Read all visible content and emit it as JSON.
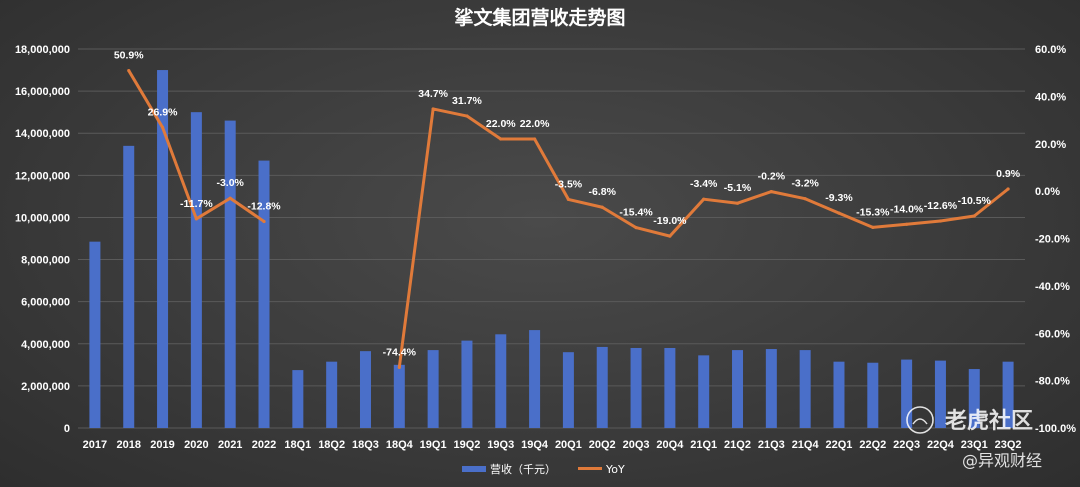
{
  "watermark": {
    "main": "老虎社区",
    "sub": "@异观财经"
  },
  "colors": {
    "bar": "#4a6fc9",
    "line": "#e07a3a",
    "grid": "#5a5a5a"
  },
  "chart_data": {
    "type": "bar+line",
    "title": "挲文集团营收走势图",
    "categories": [
      "2017",
      "2018",
      "2019",
      "2020",
      "2021",
      "2022",
      "18Q1",
      "18Q2",
      "18Q3",
      "18Q4",
      "19Q1",
      "19Q2",
      "19Q3",
      "19Q4",
      "20Q1",
      "20Q2",
      "20Q3",
      "20Q4",
      "21Q1",
      "21Q2",
      "21Q3",
      "21Q4",
      "22Q1",
      "22Q2",
      "22Q3",
      "22Q4",
      "23Q1",
      "23Q2"
    ],
    "series": [
      {
        "name": "营收（千元）",
        "type": "bar",
        "axis": "left",
        "values": [
          8850000,
          13400000,
          17000000,
          15000000,
          14600000,
          12700000,
          2750000,
          3150000,
          3650000,
          3000000,
          3700000,
          4150000,
          4450000,
          4650000,
          3600000,
          3850000,
          3800000,
          3800000,
          3450000,
          3700000,
          3750000,
          3700000,
          3150000,
          3100000,
          3250000,
          3200000,
          2800000,
          3150000
        ]
      },
      {
        "name": "YoY",
        "type": "line",
        "axis": "right",
        "values": [
          null,
          50.9,
          26.9,
          -11.7,
          -3.0,
          -12.8,
          null,
          null,
          null,
          -74.4,
          34.7,
          31.7,
          22.0,
          22.0,
          -3.5,
          -6.8,
          -15.4,
          -19.0,
          -3.4,
          -5.1,
          -0.2,
          -3.2,
          -9.3,
          -15.3,
          -14.0,
          -12.6,
          -10.5,
          0.9
        ],
        "labels": [
          "",
          "50.9%",
          "26.9%",
          "-11.7%",
          "-3.0%",
          "-12.8%",
          "",
          "",
          "",
          "-74.4%",
          "34.7%",
          "31.7%",
          "22.0%",
          "22.0%",
          "-3.5%",
          "-6.8%",
          "-15.4%",
          "-19.0%",
          "-3.4%",
          "-5.1%",
          "-0.2%",
          "-3.2%",
          "-9.3%",
          "-15.3%",
          "-14.0%",
          "-12.6%",
          "-10.5%",
          "0.9%"
        ]
      }
    ],
    "left_axis": {
      "min": 0,
      "max": 18000000,
      "step": 2000000,
      "tick_labels": [
        "0",
        "2,000,000",
        "4,000,000",
        "6,000,000",
        "8,000,000",
        "10,000,000",
        "12,000,000",
        "14,000,000",
        "16,000,000",
        "18,000,000"
      ]
    },
    "right_axis": {
      "min": -100,
      "max": 60,
      "step": 20,
      "tick_labels": [
        "-100.0%",
        "-80.0%",
        "-60.0%",
        "-40.0%",
        "-20.0%",
        "0.0%",
        "20.0%",
        "40.0%",
        "60.0%"
      ]
    },
    "grid": true,
    "legend_position": "bottom"
  }
}
